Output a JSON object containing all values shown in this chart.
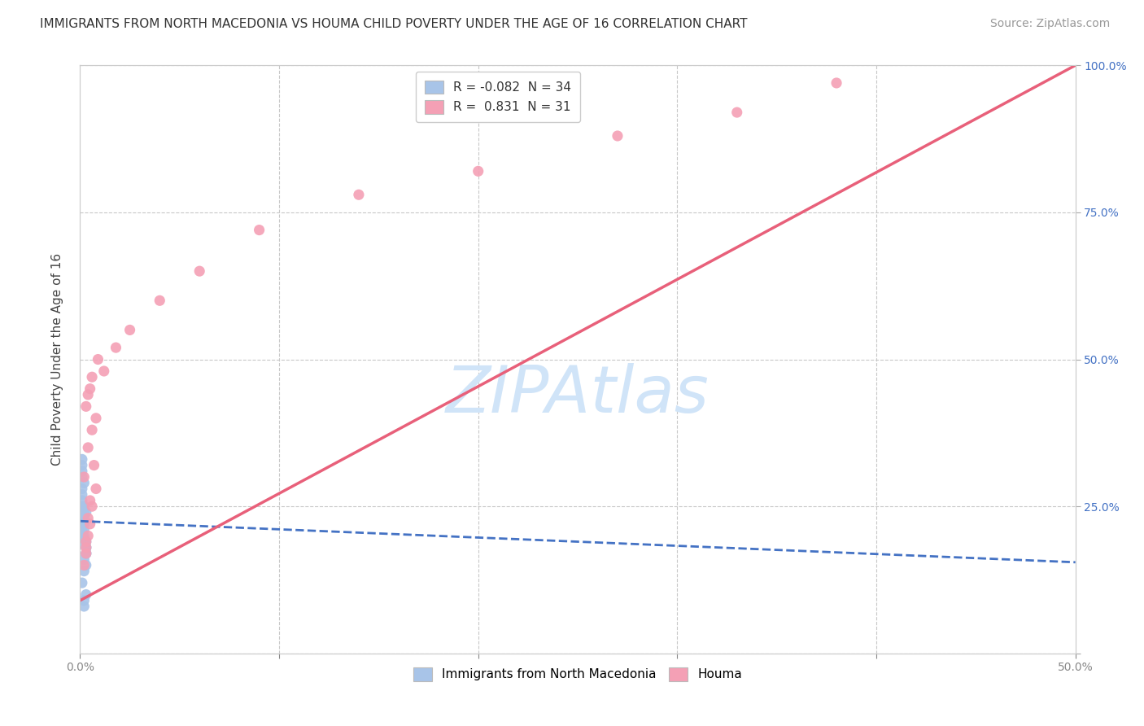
{
  "title": "IMMIGRANTS FROM NORTH MACEDONIA VS HOUMA CHILD POVERTY UNDER THE AGE OF 16 CORRELATION CHART",
  "source": "Source: ZipAtlas.com",
  "ylabel": "Child Poverty Under the Age of 16",
  "xlim": [
    0.0,
    0.5
  ],
  "ylim": [
    0.0,
    1.0
  ],
  "xticks": [
    0.0,
    0.1,
    0.2,
    0.3,
    0.4,
    0.5
  ],
  "xticklabels": [
    "0.0%",
    "",
    "",
    "",
    "",
    "50.0%"
  ],
  "yticks": [
    0.0,
    0.25,
    0.5,
    0.75,
    1.0
  ],
  "yticklabels": [
    "",
    "25.0%",
    "50.0%",
    "75.0%",
    "100.0%"
  ],
  "blue_R": -0.082,
  "blue_N": 34,
  "pink_R": 0.831,
  "pink_N": 31,
  "blue_color": "#A8C4E8",
  "pink_color": "#F4A0B5",
  "blue_line_color": "#4472C4",
  "pink_line_color": "#E8607A",
  "watermark_text": "ZIPAtlas",
  "watermark_color": "#D0E4F8",
  "background_color": "#FFFFFF",
  "grid_color": "#C8C8C8",
  "blue_x": [
    0.001,
    0.002,
    0.001,
    0.003,
    0.002,
    0.001,
    0.002,
    0.003,
    0.001,
    0.002,
    0.003,
    0.001,
    0.002,
    0.001,
    0.003,
    0.002,
    0.001,
    0.002,
    0.003,
    0.001,
    0.002,
    0.001,
    0.003,
    0.002,
    0.001,
    0.002,
    0.003,
    0.001,
    0.002,
    0.001,
    0.002,
    0.003,
    0.001,
    0.002
  ],
  "blue_y": [
    0.2,
    0.22,
    0.25,
    0.18,
    0.24,
    0.28,
    0.21,
    0.19,
    0.3,
    0.23,
    0.17,
    0.26,
    0.2,
    0.32,
    0.15,
    0.22,
    0.27,
    0.19,
    0.24,
    0.31,
    0.16,
    0.23,
    0.18,
    0.25,
    0.21,
    0.29,
    0.17,
    0.33,
    0.14,
    0.2,
    0.08,
    0.1,
    0.12,
    0.09
  ],
  "pink_x": [
    0.002,
    0.003,
    0.005,
    0.004,
    0.006,
    0.003,
    0.008,
    0.004,
    0.002,
    0.005,
    0.007,
    0.003,
    0.004,
    0.006,
    0.008,
    0.005,
    0.003,
    0.006,
    0.004,
    0.009,
    0.012,
    0.018,
    0.025,
    0.04,
    0.06,
    0.09,
    0.14,
    0.2,
    0.27,
    0.33,
    0.38
  ],
  "pink_y": [
    0.15,
    0.18,
    0.22,
    0.2,
    0.25,
    0.17,
    0.28,
    0.23,
    0.3,
    0.26,
    0.32,
    0.19,
    0.35,
    0.38,
    0.4,
    0.45,
    0.42,
    0.47,
    0.44,
    0.5,
    0.48,
    0.52,
    0.55,
    0.6,
    0.65,
    0.72,
    0.78,
    0.82,
    0.88,
    0.92,
    0.97
  ],
  "blue_line_x": [
    0.0,
    0.5
  ],
  "blue_line_y": [
    0.225,
    0.155
  ],
  "pink_line_x": [
    0.0,
    0.5
  ],
  "pink_line_y": [
    0.09,
    1.0
  ],
  "title_fontsize": 11,
  "source_fontsize": 10,
  "legend_fontsize": 11,
  "axis_label_fontsize": 11,
  "tick_fontsize": 10
}
